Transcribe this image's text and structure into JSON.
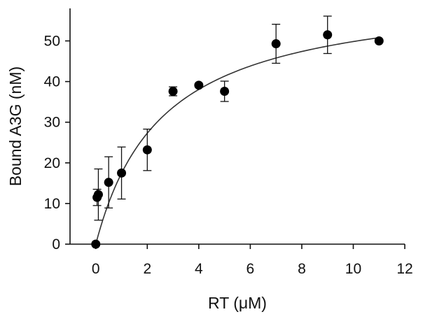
{
  "chart_data": {
    "type": "scatter",
    "xlabel": "RT (μM)",
    "ylabel": "Bound A3G (nM)",
    "xlim": [
      -1,
      12
    ],
    "ylim": [
      0,
      58
    ],
    "xticks": [
      0,
      2,
      4,
      6,
      8,
      10,
      12
    ],
    "yticks": [
      0,
      10,
      20,
      30,
      40,
      50
    ],
    "grid": false,
    "series": [
      {
        "points": [
          {
            "x": 0,
            "y": 0,
            "err": 0
          },
          {
            "x": 0.05,
            "y": 11.5,
            "err": 2
          },
          {
            "x": 0.1,
            "y": 12.2,
            "err": 6.3
          },
          {
            "x": 0.5,
            "y": 15.2,
            "err": 6.3
          },
          {
            "x": 1,
            "y": 17.5,
            "err": 6.4
          },
          {
            "x": 2,
            "y": 23.2,
            "err": 5.1
          },
          {
            "x": 3,
            "y": 37.6,
            "err": 1.1
          },
          {
            "x": 4,
            "y": 39.1,
            "err": 0
          },
          {
            "x": 5,
            "y": 37.6,
            "err": 2.5
          },
          {
            "x": 7,
            "y": 49.3,
            "err": 4.8
          },
          {
            "x": 9,
            "y": 51.5,
            "err": 4.6
          },
          {
            "x": 11,
            "y": 50,
            "err": 0
          }
        ]
      }
    ],
    "fit": {
      "model": "hyperbolic",
      "bmax": 62.8,
      "kd": 2.6,
      "x_range": [
        0,
        11
      ]
    },
    "colors": {
      "axis": "#111111",
      "marker": "#000000",
      "fit_line": "#333333"
    }
  }
}
